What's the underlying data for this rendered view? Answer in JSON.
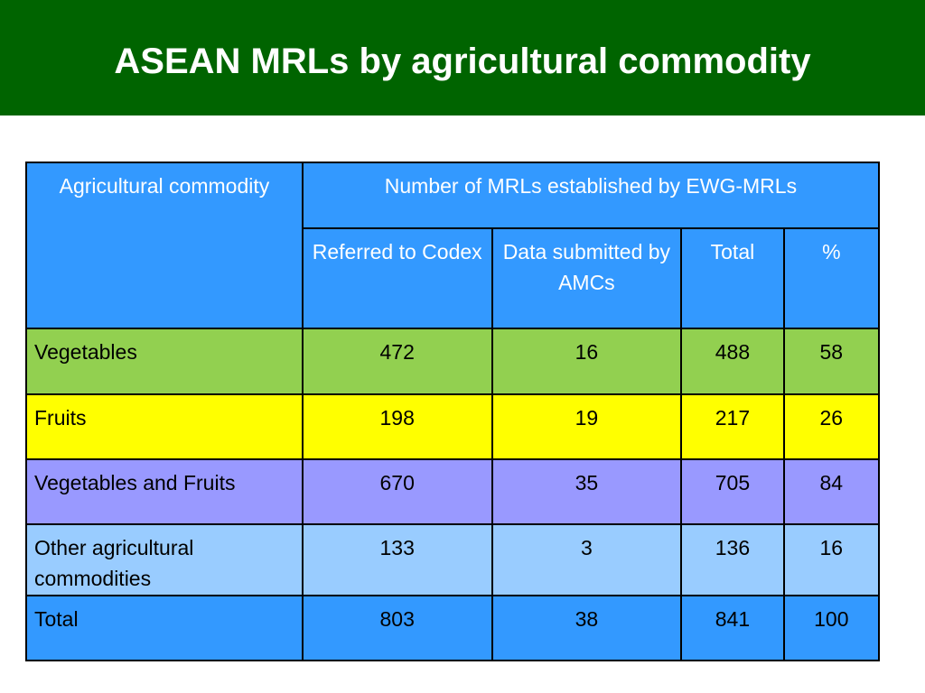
{
  "title": "ASEAN MRLs by agricultural commodity",
  "colors": {
    "title_bar": "#006400",
    "header": "#3399ff",
    "vegetables": "#92d050",
    "fruits": "#ffff00",
    "veg_and_fruits": "#9999ff",
    "other": "#99ccff",
    "total": "#3399ff"
  },
  "table": {
    "header": {
      "commodity": "Agricultural commodity",
      "group": "Number of MRLs established by EWG-MRLs",
      "cols": [
        "Referred to Codex",
        "Data submitted by AMCs",
        "Total",
        "%"
      ]
    },
    "rows": [
      {
        "label": "Vegetables",
        "values": [
          "472",
          "16",
          "488",
          "58"
        ]
      },
      {
        "label": "Fruits",
        "values": [
          "198",
          "19",
          "217",
          "26"
        ]
      },
      {
        "label": "Vegetables and Fruits",
        "values": [
          "670",
          "35",
          "705",
          "84"
        ]
      },
      {
        "label": "Other agricultural commodities",
        "values": [
          "133",
          "3",
          "136",
          "16"
        ]
      },
      {
        "label": "Total",
        "values": [
          "803",
          "38",
          "841",
          "100"
        ]
      }
    ]
  }
}
